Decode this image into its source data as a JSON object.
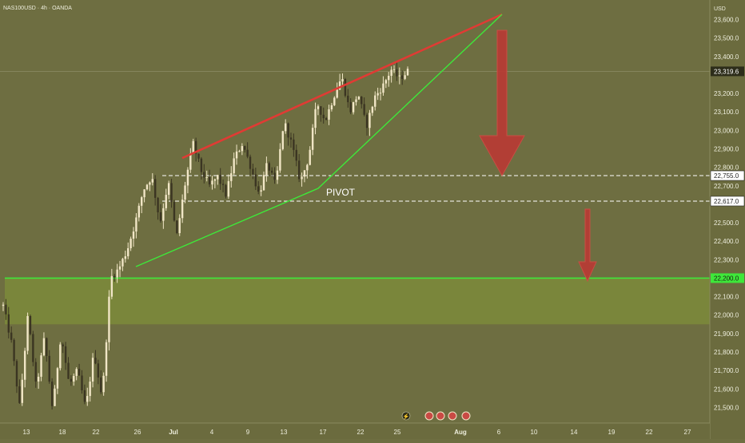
{
  "header": {
    "symbol_label": "NAS100USD · 4h · OANDA"
  },
  "price_axis": {
    "currency": "USD",
    "ticks": [
      {
        "v": 23600,
        "label": "23,600.0"
      },
      {
        "v": 23500,
        "label": "23,500.0"
      },
      {
        "v": 23400,
        "label": "23,400.0"
      },
      {
        "v": 23200,
        "label": "23,200.0"
      },
      {
        "v": 23100,
        "label": "23,100.0"
      },
      {
        "v": 23000,
        "label": "23,000.0"
      },
      {
        "v": 22900,
        "label": "22,900.0"
      },
      {
        "v": 22800,
        "label": "22,800.0"
      },
      {
        "v": 22700,
        "label": "22,700.0"
      },
      {
        "v": 22500,
        "label": "22,500.0"
      },
      {
        "v": 22400,
        "label": "22,400.0"
      },
      {
        "v": 22300,
        "label": "22,300.0"
      },
      {
        "v": 22100,
        "label": "22,100.0"
      },
      {
        "v": 22000,
        "label": "22,000.0"
      },
      {
        "v": 21900,
        "label": "21,900.0"
      },
      {
        "v": 21800,
        "label": "21,800.0"
      },
      {
        "v": 21700,
        "label": "21,700.0"
      },
      {
        "v": 21600,
        "label": "21,600.0"
      },
      {
        "v": 21500,
        "label": "21,500.0"
      }
    ],
    "badges": [
      {
        "v": 23319.6,
        "label": "23,319.6",
        "style": "dark"
      },
      {
        "v": 22755.0,
        "label": "22,755.0",
        "style": "light"
      },
      {
        "v": 22617.0,
        "label": "22,617.0",
        "style": "light"
      },
      {
        "v": 22200.0,
        "label": "22,200.0",
        "style": "green"
      }
    ]
  },
  "time_axis": {
    "ticks": [
      {
        "i": 0,
        "label": "13",
        "bold": false
      },
      {
        "i": 1,
        "label": "18",
        "bold": false
      },
      {
        "i": 2,
        "label": "22",
        "bold": false
      },
      {
        "i": 3,
        "label": "26",
        "bold": false
      },
      {
        "i": 4,
        "label": "Jul",
        "bold": true
      },
      {
        "i": 5,
        "label": "4",
        "bold": false
      },
      {
        "i": 6,
        "label": "9",
        "bold": false
      },
      {
        "i": 7,
        "label": "13",
        "bold": false
      },
      {
        "i": 8,
        "label": "17",
        "bold": false
      },
      {
        "i": 9,
        "label": "22",
        "bold": false
      },
      {
        "i": 10,
        "label": "25",
        "bold": false
      },
      {
        "i": 11,
        "label": "Aug",
        "bold": true
      },
      {
        "i": 12,
        "label": "6",
        "bold": false
      },
      {
        "i": 13,
        "label": "10",
        "bold": false
      },
      {
        "i": 14,
        "label": "14",
        "bold": false
      },
      {
        "i": 15,
        "label": "19",
        "bold": false
      },
      {
        "i": 16,
        "label": "22",
        "bold": false
      },
      {
        "i": 17,
        "label": "27",
        "bold": false
      }
    ]
  },
  "chart_data": {
    "type": "candlestick",
    "symbol": "NAS100USD",
    "timeframe": "4h",
    "ylim": [
      21450,
      23700
    ],
    "current_price": 23319.6,
    "zone": {
      "top": 22200,
      "bottom": 21950
    },
    "key_levels": [
      22755.0,
      22617.0
    ],
    "annotations": [
      {
        "type": "text",
        "text": "PIVOT"
      }
    ],
    "price_path": [
      [
        0,
        22050
      ],
      [
        1,
        21850
      ],
      [
        2,
        21500
      ],
      [
        3,
        22000
      ],
      [
        4,
        21600
      ],
      [
        5,
        21880
      ],
      [
        6,
        21480
      ],
      [
        7,
        21900
      ],
      [
        8,
        21620
      ],
      [
        9,
        21700
      ],
      [
        10,
        21490
      ],
      [
        11,
        21800
      ],
      [
        12,
        21550
      ],
      [
        13,
        22200
      ],
      [
        14,
        22250
      ],
      [
        15,
        22350
      ],
      [
        16,
        22500
      ],
      [
        17,
        22680
      ],
      [
        18,
        22750
      ],
      [
        19,
        22500
      ],
      [
        20,
        22720
      ],
      [
        21,
        22420
      ],
      [
        22,
        22700
      ],
      [
        23,
        22930
      ],
      [
        24,
        22780
      ],
      [
        25,
        22700
      ],
      [
        26,
        22750
      ],
      [
        27,
        22650
      ],
      [
        28,
        22850
      ],
      [
        29,
        22930
      ],
      [
        30,
        22800
      ],
      [
        31,
        22650
      ],
      [
        32,
        22820
      ],
      [
        33,
        22700
      ],
      [
        34,
        23050
      ],
      [
        35,
        22920
      ],
      [
        36,
        22720
      ],
      [
        37,
        22850
      ],
      [
        38,
        23150
      ],
      [
        39,
        23050
      ],
      [
        40,
        23180
      ],
      [
        41,
        23290
      ],
      [
        42,
        23100
      ],
      [
        43,
        23200
      ],
      [
        44,
        23020
      ],
      [
        45,
        23180
      ],
      [
        46,
        23240
      ],
      [
        47,
        23330
      ],
      [
        48,
        23280
      ],
      [
        49,
        23320
      ]
    ]
  },
  "tool_icons": [
    "lightning-icon",
    "event-icon",
    "event-icon",
    "event-icon",
    "event-icon"
  ]
}
